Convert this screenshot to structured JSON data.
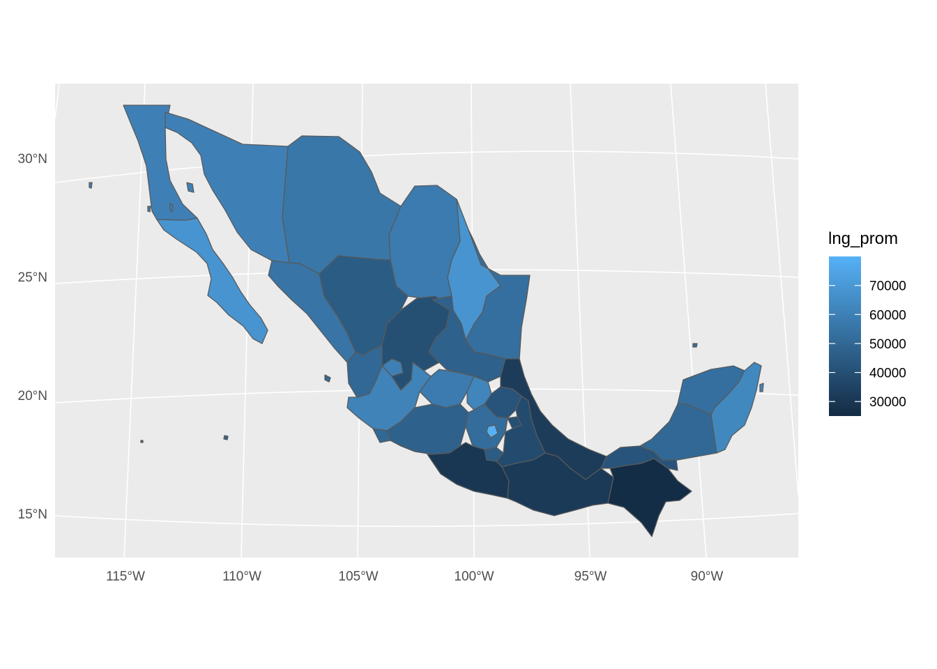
{
  "chart_data": {
    "type": "choropleth-map",
    "title": "",
    "xlabel": "",
    "ylabel": "",
    "x_ticks": [
      "115°W",
      "110°W",
      "105°W",
      "100°W",
      "95°W",
      "90°W"
    ],
    "y_ticks": [
      "15°N",
      "20°N",
      "25°N",
      "30°N"
    ],
    "lon_range": [
      -118,
      -86
    ],
    "lat_range": [
      13,
      33
    ],
    "grid": true,
    "legend": {
      "title": "lng_prom",
      "position": "right",
      "min": 25000,
      "max": 80000,
      "ticks": [
        70000,
        60000,
        50000,
        40000,
        30000
      ],
      "tick_labels": [
        "70000",
        "60000",
        "50000",
        "40000",
        "30000"
      ],
      "low_color": "#132b43",
      "high_color": "#56b1f7"
    },
    "regions": [
      {
        "id": "baja-california",
        "value": 60000
      },
      {
        "id": "baja-california-sur",
        "value": 68000
      },
      {
        "id": "sonora",
        "value": 60000
      },
      {
        "id": "chihuahua",
        "value": 56000
      },
      {
        "id": "coahuila",
        "value": 58000
      },
      {
        "id": "nuevo-leon",
        "value": 68000
      },
      {
        "id": "tamaulipas",
        "value": 53000
      },
      {
        "id": "sinaloa",
        "value": 55000
      },
      {
        "id": "durango",
        "value": 45000
      },
      {
        "id": "zacatecas",
        "value": 40000
      },
      {
        "id": "nayarit",
        "value": 50000
      },
      {
        "id": "aguascalientes",
        "value": 60000
      },
      {
        "id": "jalisco",
        "value": 61000
      },
      {
        "id": "san-luis-potosi",
        "value": 47000
      },
      {
        "id": "guanajuato",
        "value": 58000
      },
      {
        "id": "queretaro",
        "value": 62000
      },
      {
        "id": "colima",
        "value": 50000
      },
      {
        "id": "michoacan",
        "value": 47000
      },
      {
        "id": "hidalgo",
        "value": 42000
      },
      {
        "id": "mexico",
        "value": 52000
      },
      {
        "id": "cdmx",
        "value": 80000
      },
      {
        "id": "morelos",
        "value": 45000
      },
      {
        "id": "tlaxcala",
        "value": 40000
      },
      {
        "id": "puebla",
        "value": 38000
      },
      {
        "id": "veracruz",
        "value": 32000
      },
      {
        "id": "guerrero",
        "value": 30000
      },
      {
        "id": "oaxaca",
        "value": 31000
      },
      {
        "id": "chiapas",
        "value": 26000
      },
      {
        "id": "tabasco",
        "value": 42000
      },
      {
        "id": "campeche",
        "value": 50000
      },
      {
        "id": "yucatan",
        "value": 53000
      },
      {
        "id": "quintana-roo",
        "value": 63000
      }
    ]
  }
}
